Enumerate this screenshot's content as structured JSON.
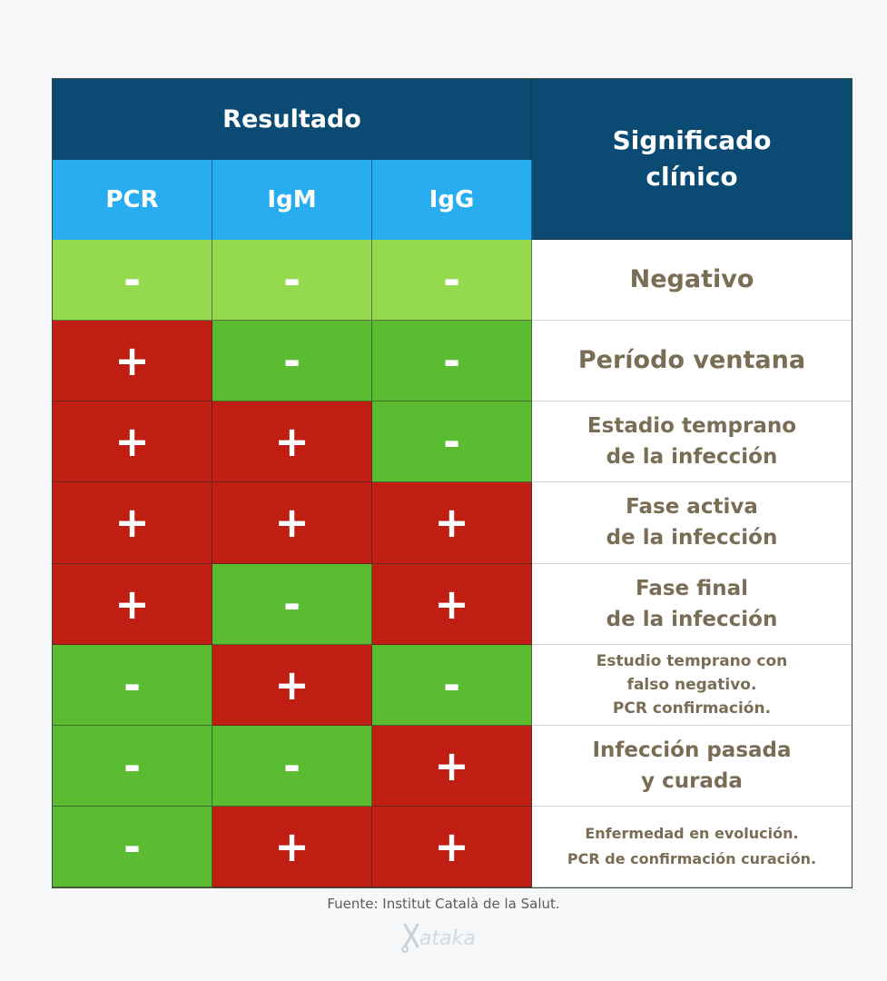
{
  "header": {
    "resultado": "Resultado",
    "significado": [
      "Significado",
      "clínico"
    ],
    "columns": [
      "PCR",
      "IgM",
      "IgG"
    ]
  },
  "rows": [
    {
      "marks": [
        "-",
        "-",
        "-"
      ],
      "meaning": [
        "Negativo"
      ]
    },
    {
      "marks": [
        "+",
        "-",
        "-"
      ],
      "meaning": [
        "Período ventana"
      ]
    },
    {
      "marks": [
        "+",
        "+",
        "-"
      ],
      "meaning": [
        "Estadio temprano",
        "de la infección"
      ]
    },
    {
      "marks": [
        "+",
        "+",
        "+"
      ],
      "meaning": [
        "Fase activa",
        "de la infección"
      ]
    },
    {
      "marks": [
        "+",
        "-",
        "+"
      ],
      "meaning": [
        "Fase final",
        "de la infección"
      ]
    },
    {
      "marks": [
        "-",
        "+",
        "-"
      ],
      "meaning": [
        "Estudio temprano con",
        "falso negativo.",
        "PCR confirmación."
      ]
    },
    {
      "marks": [
        "-",
        "-",
        "+"
      ],
      "meaning": [
        "Infección pasada",
        "y curada"
      ]
    },
    {
      "marks": [
        "-",
        "+",
        "+"
      ],
      "meaning": [
        "Enfermedad en evolución.",
        "PCR de confirmación curación."
      ]
    }
  ],
  "source": "Fuente: Institut Català de la Salut.",
  "logo_text": "xataka",
  "colors": {
    "header_dark": "#0b4a73",
    "header_light": "#27adf0",
    "positive": "#c01e13",
    "negative": "#5bbc32",
    "negative_light": "#95d94f",
    "meaning_text": "#7a6d55"
  }
}
